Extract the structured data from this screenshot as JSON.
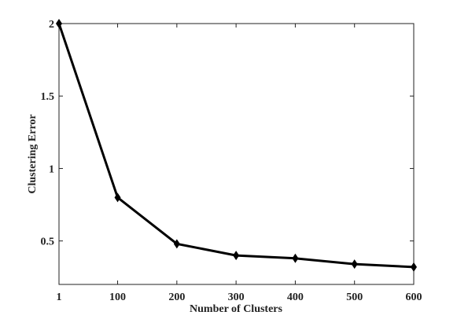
{
  "chart_data": {
    "type": "line",
    "x_label": "Number of Clusters",
    "y_label": "Clustering Error",
    "x": [
      1,
      100,
      200,
      300,
      400,
      500,
      600
    ],
    "series": [
      {
        "name": "Clustering Error",
        "color": "#000000",
        "values": [
          2,
          0.8,
          0.48,
          0.4,
          0.38,
          0.34,
          0.32
        ]
      }
    ],
    "xlim": [
      1,
      600
    ],
    "xticks": [
      1,
      100,
      200,
      300,
      400,
      500,
      600
    ],
    "ylim": [
      0.2,
      2
    ],
    "yticks": [
      0.5,
      1,
      1.5,
      2
    ],
    "grid": false
  }
}
